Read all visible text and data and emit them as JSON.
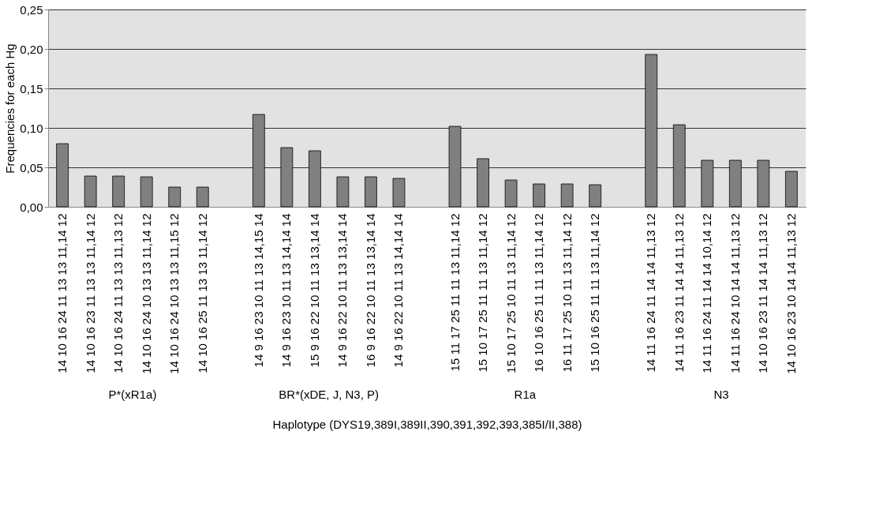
{
  "chart_data": {
    "type": "bar",
    "ylabel": "Frequencies for each Hg",
    "xlabel": "Haplotype (DYS19,389I,389II,390,391,392,393,385I/II,388)",
    "categories": [
      "14 10 16 24 11 13 13 11,14 12",
      "14 10 16 23 11 13 13 11,14 12",
      "14 10 16 24 11 13 13 11,13 12",
      "14 10 16 24 10 13 13 11,14 12",
      "14 10 16 24 10 13 13 11,15 12",
      "14 10 16 25 11 13 13 11,14 12",
      null,
      "14 9 16 23 10 11 13 14,15 14",
      "14 9 16 23 10 11 13 14,14 14",
      "15 9 16 22 10 11 13 13,14 14",
      "14 9 16 22 10 11 13 13,14 14",
      "16 9 16 22 10 11 13 13,14 14",
      "14 9 16 22 10 11 13 14,14 14",
      null,
      "15 11 17 25 11 11 13 11,14 12",
      "15 10 17 25 11 11 13 11,14 12",
      "15 10 17 25 10 11 13 11,14 12",
      "16 10 16 25 11 11 13 11,14 12",
      "16 11 17 25 10 11 13 11,14 12",
      "15 10 16 25 11 11 13 11,14 12",
      null,
      "14 11 16 24 11 14 14 11,13 12",
      "14 11 16 23 11 14 14 11,13 12",
      "14 11 16 24 11 14 14 10,14 12",
      "14 11 16 24 10 14 14 11,13 12",
      "14 10 16 23 11 14 14 11,13 12",
      "14 10 16 23 10 14 14 11,13 12"
    ],
    "values": [
      0.08,
      0.039,
      0.039,
      0.038,
      0.025,
      0.025,
      null,
      0.117,
      0.075,
      0.071,
      0.038,
      0.038,
      0.036,
      null,
      0.102,
      0.061,
      0.034,
      0.029,
      0.029,
      0.028,
      null,
      0.193,
      0.104,
      0.059,
      0.059,
      0.059,
      0.045
    ],
    "color": "#808080",
    "annotations": [
      "P*(xR1a)",
      "BR*(xDE, J, N3, P)",
      "R1a",
      "N3"
    ],
    "ylim": [
      0,
      0.25
    ],
    "yticks": [
      {
        "value": 0,
        "label": "0,00"
      },
      {
        "value": 0.05,
        "label": "0,05"
      },
      {
        "value": 0.1,
        "label": "0,10"
      },
      {
        "value": 0.15,
        "label": "0,15"
      },
      {
        "value": 0.2,
        "label": "0,20"
      },
      {
        "value": 0.25,
        "label": "0,25"
      }
    ],
    "grid": "y"
  }
}
